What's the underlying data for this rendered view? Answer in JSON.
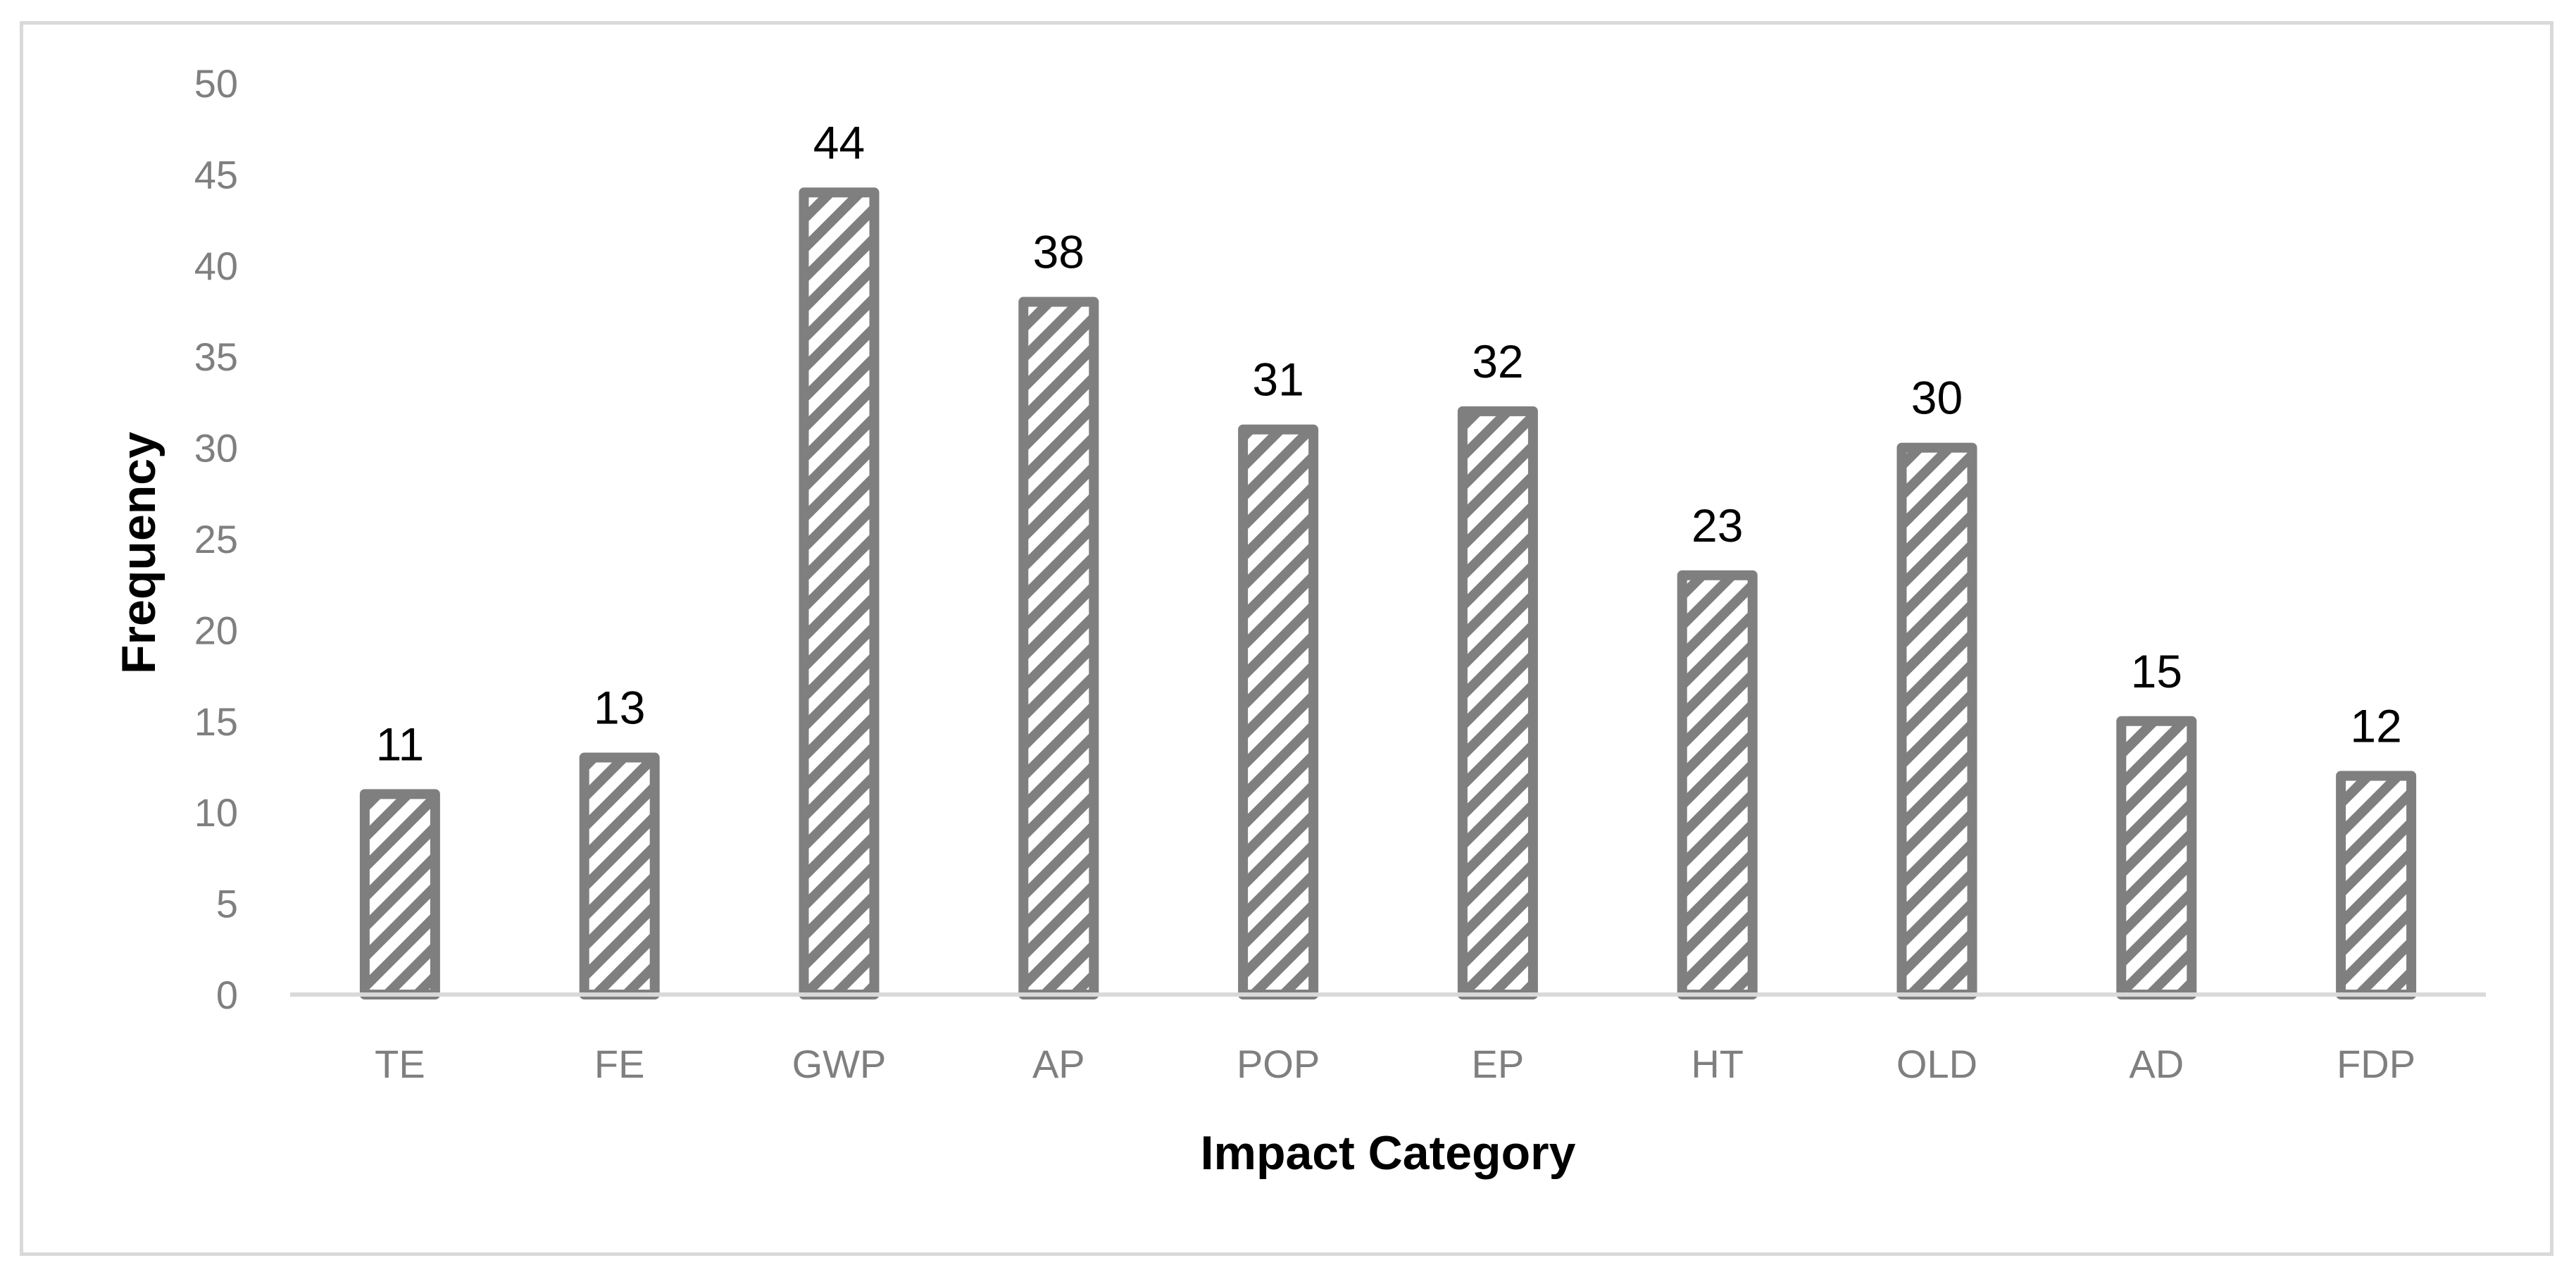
{
  "chart_data": {
    "type": "bar",
    "title": "",
    "xlabel": "Impact Category",
    "ylabel": "Frequency",
    "categories": [
      "TE",
      "FE",
      "GWP",
      "AP",
      "POP",
      "EP",
      "HT",
      "OLD",
      "AD",
      "FDP"
    ],
    "values": [
      11,
      13,
      44,
      38,
      31,
      32,
      23,
      30,
      15,
      12
    ],
    "ylim": [
      0,
      50
    ],
    "yticks": [
      0,
      5,
      10,
      15,
      20,
      25,
      30,
      35,
      40,
      45,
      50
    ],
    "grid": false,
    "legend": "none",
    "bar_fill_pattern": "diagonal-hatch",
    "colors": {
      "bar_outline": "#7f7f7f",
      "bar_hatch": "#7f7f7f",
      "bar_background": "#ffffff",
      "axis_line": "#d9d9d9",
      "tick_label": "#7f7f7f",
      "data_label": "#000000",
      "frame_border": "#d9d9d9"
    }
  }
}
